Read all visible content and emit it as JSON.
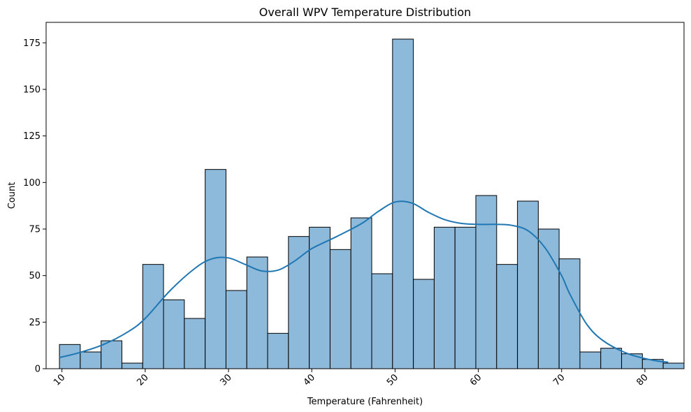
{
  "chart_data": {
    "type": "bar",
    "title": "Overall WPV Temperature Distribution",
    "xlabel": "Temperature (Fahrenheit)",
    "ylabel": "Count",
    "xlim": [
      8.1,
      84.7
    ],
    "ylim": [
      0,
      186
    ],
    "bin_start": 9.7,
    "bin_width": 2.5,
    "values": [
      13,
      9,
      15,
      3,
      56,
      37,
      27,
      107,
      42,
      60,
      19,
      71,
      76,
      64,
      81,
      51,
      177,
      48,
      76,
      76,
      93,
      56,
      90,
      75,
      59,
      9,
      11,
      8,
      5,
      3
    ],
    "x_ticks": [
      "10",
      "20",
      "30",
      "40",
      "50",
      "60",
      "70",
      "80"
    ],
    "x_tick_values": [
      10,
      20,
      30,
      40,
      50,
      60,
      70,
      80
    ],
    "y_ticks": [
      "0",
      "25",
      "50",
      "75",
      "100",
      "125",
      "150",
      "175"
    ],
    "y_tick_values": [
      0,
      25,
      50,
      75,
      100,
      125,
      150,
      175
    ],
    "bar_color": "#8db9da",
    "bar_edge_color": "#000000",
    "kde_color": "#1f77b4",
    "kde": {
      "x": [
        9.7,
        12,
        15,
        18,
        20,
        23,
        26,
        28,
        30,
        32,
        34,
        36,
        38,
        40,
        43,
        46,
        48,
        50,
        52,
        54,
        56,
        58,
        60,
        62,
        64,
        66,
        68,
        70,
        71,
        73,
        75,
        78,
        81,
        82.8
      ],
      "y": [
        6,
        8.5,
        13,
        20,
        27,
        42,
        54,
        59,
        59.5,
        56,
        52.5,
        53,
        58,
        64.5,
        71,
        78,
        84.5,
        89.5,
        89,
        84,
        80,
        78,
        77.5,
        77.5,
        77,
        74,
        65,
        50,
        40,
        24,
        15,
        8,
        4.5,
        3.5
      ]
    }
  }
}
